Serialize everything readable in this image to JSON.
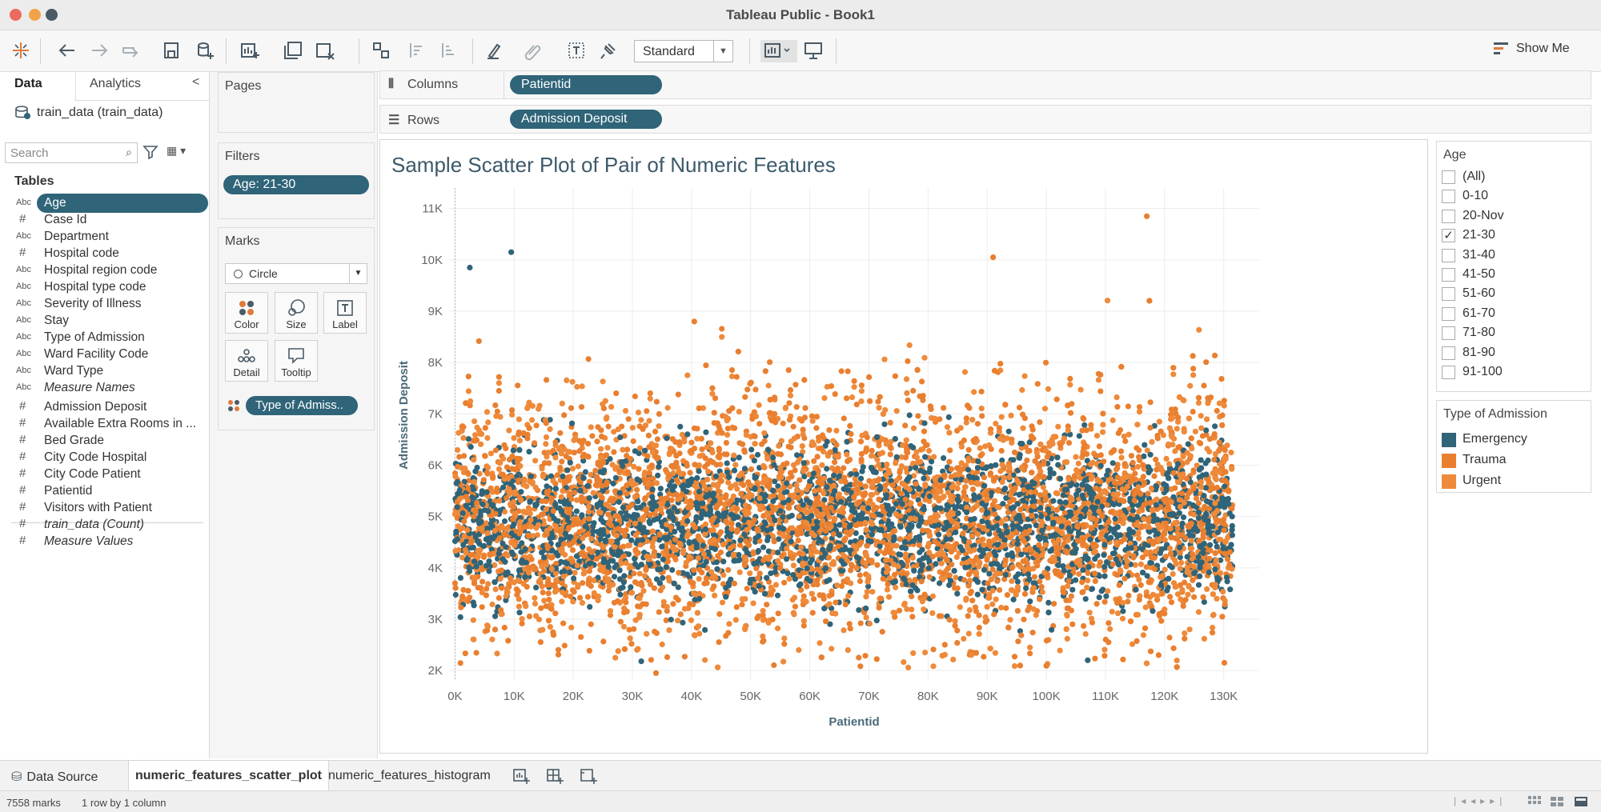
{
  "window": {
    "title": "Tableau Public - Book1"
  },
  "toolbar": {
    "fit_value": "Standard",
    "show_me_label": "Show Me",
    "icons": [
      "tableau-logo-icon",
      "undo-icon",
      "redo-icon",
      "replay-icon",
      "save-icon",
      "new-datasource-icon",
      "new-worksheet-icon",
      "duplicate-sheet-icon",
      "clear-sheet-icon",
      "swap-icon",
      "sort-ascending-icon",
      "sort-descending-icon",
      "highlight-icon",
      "group-icon",
      "label-icon",
      "pin-icon",
      "show-cards-icon",
      "presentation-icon"
    ]
  },
  "data_pane": {
    "tabs": [
      "Data",
      "Analytics"
    ],
    "datasource": "train_data (train_data)",
    "search_placeholder": "Search",
    "tables_label": "Tables",
    "dimensions": [
      {
        "type": "Abc",
        "name": "Age",
        "selected": true
      },
      {
        "type": "#",
        "name": "Case Id"
      },
      {
        "type": "Abc",
        "name": "Department"
      },
      {
        "type": "#",
        "name": "Hospital code"
      },
      {
        "type": "Abc",
        "name": "Hospital region code"
      },
      {
        "type": "Abc",
        "name": "Hospital type code"
      },
      {
        "type": "Abc",
        "name": "Severity of Illness"
      },
      {
        "type": "Abc",
        "name": "Stay"
      },
      {
        "type": "Abc",
        "name": "Type of Admission"
      },
      {
        "type": "Abc",
        "name": "Ward Facility Code"
      },
      {
        "type": "Abc",
        "name": "Ward Type"
      },
      {
        "type": "Abc",
        "name": "Measure Names",
        "italic": true
      }
    ],
    "measures": [
      {
        "type": "#",
        "name": "Admission Deposit"
      },
      {
        "type": "#",
        "name": "Available Extra Rooms in ..."
      },
      {
        "type": "#",
        "name": "Bed Grade"
      },
      {
        "type": "#",
        "name": "City Code Hospital"
      },
      {
        "type": "#",
        "name": "City Code Patient"
      },
      {
        "type": "#",
        "name": "Patientid"
      },
      {
        "type": "#",
        "name": "Visitors with Patient"
      },
      {
        "type": "#",
        "name": "train_data (Count)",
        "italic": true
      },
      {
        "type": "#",
        "name": "Measure Values",
        "italic": true
      }
    ]
  },
  "cards": {
    "pages_title": "Pages",
    "filters_title": "Filters",
    "filter_pill": "Age: 21-30",
    "marks_title": "Marks",
    "mark_type": "Circle",
    "mark_buttons": [
      "Color",
      "Size",
      "Label",
      "Detail",
      "Tooltip"
    ],
    "marks_field": "Type of Admiss.."
  },
  "shelves": {
    "columns_label": "Columns",
    "columns_pill": "Patientid",
    "rows_label": "Rows",
    "rows_pill": "Admission Deposit"
  },
  "legends": {
    "age_title": "Age",
    "age_items": [
      {
        "label": "(All)",
        "checked": false
      },
      {
        "label": "0-10",
        "checked": false
      },
      {
        "label": "20-Nov",
        "checked": false
      },
      {
        "label": "21-30",
        "checked": true
      },
      {
        "label": "31-40",
        "checked": false
      },
      {
        "label": "41-50",
        "checked": false
      },
      {
        "label": "51-60",
        "checked": false
      },
      {
        "label": "61-70",
        "checked": false
      },
      {
        "label": "71-80",
        "checked": false
      },
      {
        "label": "81-90",
        "checked": false
      },
      {
        "label": "91-100",
        "checked": false
      }
    ],
    "type_title": "Type of Admission",
    "type_items": [
      {
        "label": "Emergency",
        "color": "#2f6479"
      },
      {
        "label": "Trauma",
        "color": "#e97f2f"
      },
      {
        "label": "Urgent",
        "color": "#ee8a3a"
      }
    ]
  },
  "sheet_tabs": {
    "datasource": "Data Source",
    "sheets": [
      "numeric_features_scatter_plot",
      "numeric_features_histogram"
    ]
  },
  "status": {
    "marks": "7558 marks",
    "dims": "1 row by 1 column"
  },
  "chart_data": {
    "type": "scatter",
    "title": "Sample Scatter Plot of Pair of Numeric Features",
    "xlabel": "Patientid",
    "ylabel": "Admission Deposit",
    "xlim": [
      -1000,
      136000
    ],
    "ylim": [
      1800,
      11400
    ],
    "xticks": [
      "0K",
      "10K",
      "20K",
      "30K",
      "40K",
      "50K",
      "60K",
      "70K",
      "80K",
      "90K",
      "100K",
      "110K",
      "120K",
      "130K"
    ],
    "yticks": [
      "2K",
      "3K",
      "4K",
      "5K",
      "6K",
      "7K",
      "8K",
      "9K",
      "10K",
      "11K"
    ],
    "grid": true,
    "n_points": 7558,
    "series": [
      {
        "name": "Emergency",
        "color": "#2f6479",
        "mean": 4850,
        "sd": 700
      },
      {
        "name": "Trauma",
        "color": "#e97f2f",
        "mean": 5000,
        "sd": 1150
      },
      {
        "name": "Urgent",
        "color": "#ee8a3a",
        "mean": 5000,
        "sd": 1100
      }
    ],
    "notable_points": [
      {
        "x": 117000,
        "y": 10850,
        "series": "Trauma"
      },
      {
        "x": 91000,
        "y": 10050,
        "series": "Trauma"
      },
      {
        "x": 9500,
        "y": 10150,
        "series": "Emergency"
      },
      {
        "x": 2500,
        "y": 9850,
        "series": "Emergency"
      },
      {
        "x": 34000,
        "y": 1950,
        "series": "Trauma"
      },
      {
        "x": 107000,
        "y": 2200,
        "series": "Emergency"
      },
      {
        "x": 31500,
        "y": 2180,
        "series": "Emergency"
      },
      {
        "x": 119000,
        "y": 2300,
        "series": "Trauma"
      }
    ]
  }
}
